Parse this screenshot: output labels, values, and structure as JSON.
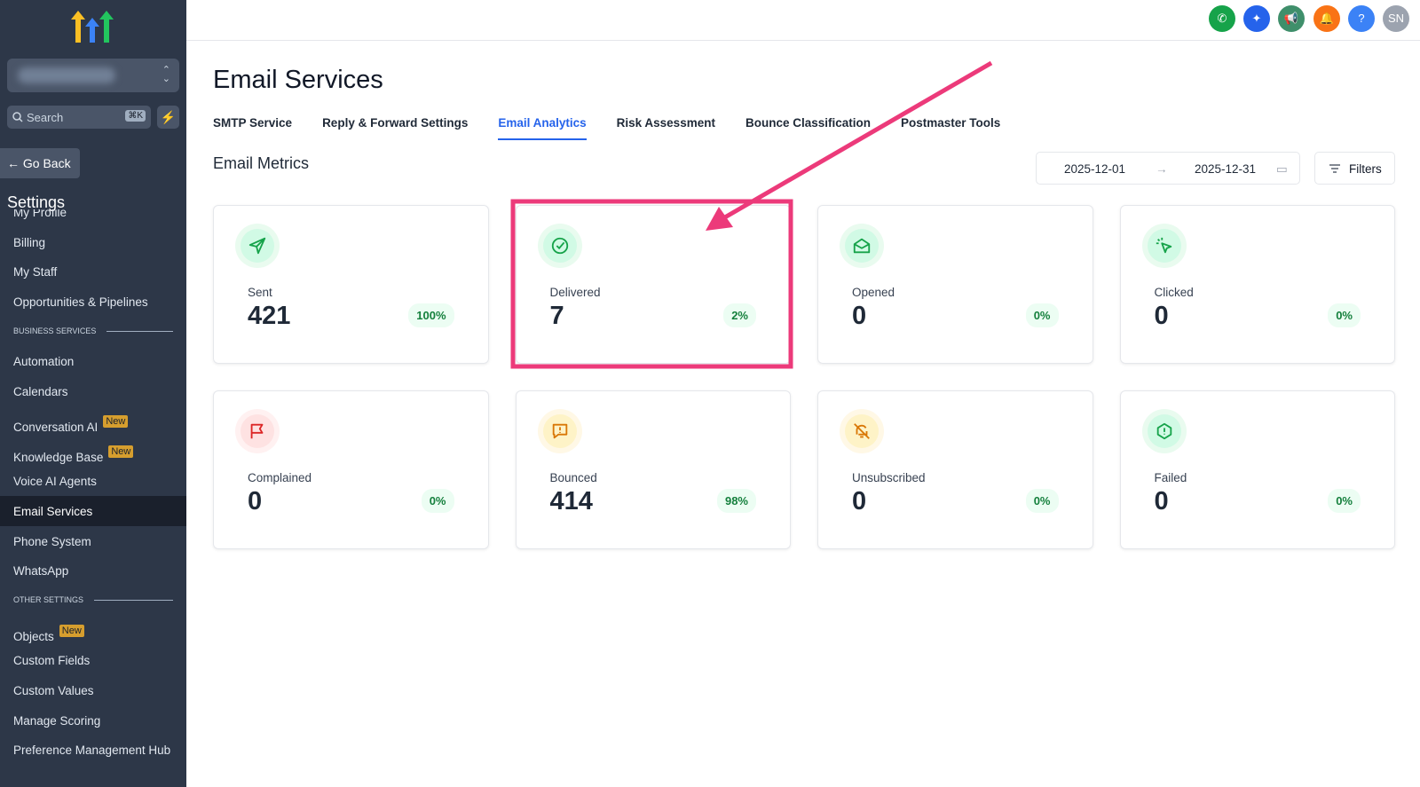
{
  "sidebar": {
    "search_placeholder": "Search",
    "search_shortcut": "⌘K",
    "go_back": "Go Back",
    "section_title": "Settings",
    "items": [
      {
        "label": "My Profile"
      },
      {
        "label": "Billing"
      },
      {
        "label": "My Staff"
      },
      {
        "label": "Opportunities & Pipelines"
      },
      {
        "header": "BUSINESS SERVICES"
      },
      {
        "label": "Automation"
      },
      {
        "label": "Calendars"
      },
      {
        "label": "Conversation AI",
        "badge": "New"
      },
      {
        "label": "Knowledge Base",
        "badge": "New"
      },
      {
        "label": "Voice AI Agents"
      },
      {
        "label": "Email Services",
        "active": true
      },
      {
        "label": "Phone System"
      },
      {
        "label": "WhatsApp"
      },
      {
        "header": "OTHER SETTINGS"
      },
      {
        "label": "Objects",
        "badge": "New"
      },
      {
        "label": "Custom Fields"
      },
      {
        "label": "Custom Values"
      },
      {
        "label": "Manage Scoring"
      },
      {
        "label": "Preference Management Hub"
      }
    ]
  },
  "topbar": {
    "help": "?",
    "avatar": "SN"
  },
  "header": {
    "title": "Email Services"
  },
  "tabs": {
    "items": [
      "SMTP Service",
      "Reply & Forward Settings",
      "Email Analytics",
      "Risk Assessment",
      "Bounce Classification",
      "Postmaster Tools"
    ],
    "active": 2
  },
  "metrics": {
    "title": "Email Metrics",
    "date_from": "2025-12-01",
    "date_to": "2025-12-31",
    "filters": "Filters",
    "cards": [
      {
        "name": "Sent",
        "value": 421,
        "percent": "100%"
      },
      {
        "name": "Delivered",
        "value": 7,
        "percent": "2%"
      },
      {
        "name": "Opened",
        "value": 0,
        "percent": "0%"
      },
      {
        "name": "Clicked",
        "value": 0,
        "percent": "0%"
      },
      {
        "name": "Complained",
        "value": 0,
        "percent": "0%"
      },
      {
        "name": "Bounced",
        "value": 414,
        "percent": "98%"
      },
      {
        "name": "Unsubscribed",
        "value": 0,
        "percent": "0%"
      },
      {
        "name": "Failed",
        "value": 0,
        "percent": "0%"
      }
    ]
  }
}
